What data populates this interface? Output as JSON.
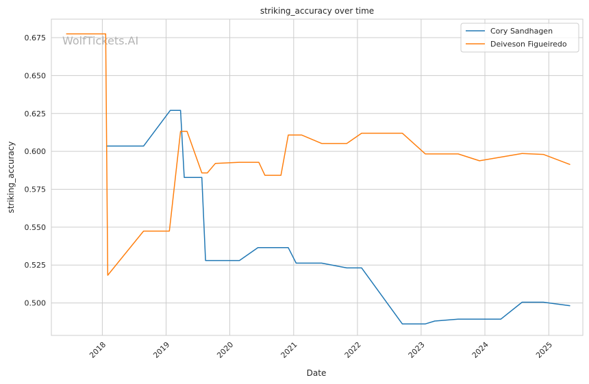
{
  "chart_data": {
    "type": "line",
    "title": "striking_accuracy over time",
    "xlabel": "Date",
    "ylabel": "striking_accuracy",
    "watermark": "WolfTickets.AI",
    "xlim": [
      "2017-03-15",
      "2025-07-15"
    ],
    "ylim": [
      0.4786,
      0.6872
    ],
    "x_ticks": [
      "2018-01-01",
      "2019-01-01",
      "2020-01-01",
      "2021-01-01",
      "2022-01-01",
      "2023-01-01",
      "2024-01-01",
      "2025-01-01"
    ],
    "x_tick_labels": [
      "2018",
      "2019",
      "2020",
      "2021",
      "2022",
      "2023",
      "2024",
      "2025"
    ],
    "y_ticks": [
      0.5,
      0.525,
      0.55,
      0.575,
      0.6,
      0.625,
      0.65,
      0.675
    ],
    "y_tick_labels": [
      "0.500",
      "0.525",
      "0.550",
      "0.575",
      "0.600",
      "0.625",
      "0.650",
      "0.675"
    ],
    "grid": true,
    "legend_position": "top-right",
    "series": [
      {
        "name": "Cory Sandhagen",
        "color": "#1f77b4",
        "points": [
          [
            "2018-01-25",
            0.6035
          ],
          [
            "2018-08-25",
            0.6035
          ],
          [
            "2019-01-25",
            0.627
          ],
          [
            "2019-03-25",
            0.627
          ],
          [
            "2019-04-15",
            0.5828
          ],
          [
            "2019-07-25",
            0.5828
          ],
          [
            "2019-08-15",
            0.528
          ],
          [
            "2020-02-25",
            0.528
          ],
          [
            "2020-06-10",
            0.5365
          ],
          [
            "2020-12-01",
            0.5365
          ],
          [
            "2021-01-15",
            0.5263
          ],
          [
            "2021-06-10",
            0.5263
          ],
          [
            "2021-11-01",
            0.5231
          ],
          [
            "2022-01-25",
            0.5231
          ],
          [
            "2022-09-15",
            0.4862
          ],
          [
            "2023-01-25",
            0.4862
          ],
          [
            "2023-03-20",
            0.4881
          ],
          [
            "2023-08-01",
            0.4893
          ],
          [
            "2024-04-01",
            0.4893
          ],
          [
            "2024-08-01",
            0.5005
          ],
          [
            "2024-12-01",
            0.5005
          ],
          [
            "2025-05-01",
            0.4982
          ]
        ]
      },
      {
        "name": "Deiveson Figueiredo",
        "color": "#ff7f0e",
        "points": [
          [
            "2017-06-10",
            0.6775
          ],
          [
            "2018-01-20",
            0.6775
          ],
          [
            "2018-02-01",
            0.5183
          ],
          [
            "2018-08-25",
            0.5474
          ],
          [
            "2019-01-20",
            0.5474
          ],
          [
            "2019-03-25",
            0.6132
          ],
          [
            "2019-05-01",
            0.6132
          ],
          [
            "2019-07-25",
            0.5858
          ],
          [
            "2019-08-25",
            0.5858
          ],
          [
            "2019-10-10",
            0.592
          ],
          [
            "2020-02-25",
            0.5928
          ],
          [
            "2020-06-15",
            0.5928
          ],
          [
            "2020-07-20",
            0.5842
          ],
          [
            "2020-10-20",
            0.5842
          ],
          [
            "2020-12-01",
            0.6108
          ],
          [
            "2021-02-15",
            0.6108
          ],
          [
            "2021-06-10",
            0.6052
          ],
          [
            "2021-11-01",
            0.6052
          ],
          [
            "2022-01-25",
            0.612
          ],
          [
            "2022-09-15",
            0.612
          ],
          [
            "2023-01-25",
            0.5983
          ],
          [
            "2023-08-01",
            0.5983
          ],
          [
            "2023-12-01",
            0.5938
          ],
          [
            "2024-08-01",
            0.5986
          ],
          [
            "2024-12-01",
            0.598
          ],
          [
            "2025-05-01",
            0.5914
          ]
        ]
      }
    ]
  }
}
